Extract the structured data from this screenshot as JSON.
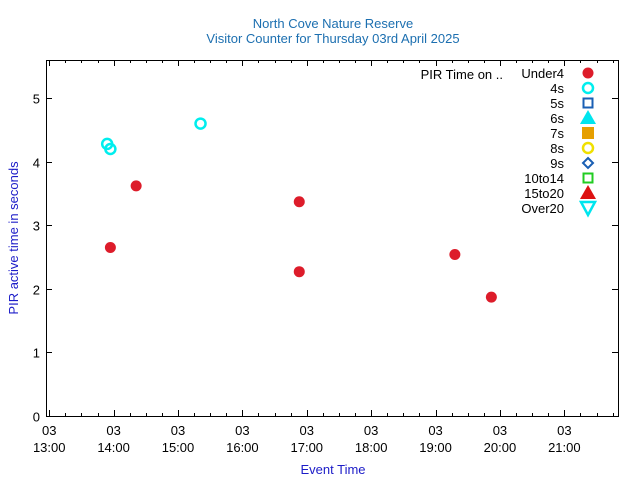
{
  "chart_data": {
    "type": "scatter",
    "title": "North Cove Nature Reserve",
    "subtitle": "Visitor Counter for Thursday 03rd April 2025",
    "xlabel": "Event Time",
    "ylabel": "PIR active time in seconds",
    "legend_title": "PIR Time on ..",
    "legend_position": "top-right",
    "xlim": [
      "12:57",
      "21:50"
    ],
    "ylim": [
      0,
      5.6
    ],
    "x_ticks": [
      {
        "day": "03",
        "time": "13:00"
      },
      {
        "day": "03",
        "time": "14:00"
      },
      {
        "day": "03",
        "time": "15:00"
      },
      {
        "day": "03",
        "time": "16:00"
      },
      {
        "day": "03",
        "time": "17:00"
      },
      {
        "day": "03",
        "time": "18:00"
      },
      {
        "day": "03",
        "time": "19:00"
      },
      {
        "day": "03",
        "time": "20:00"
      },
      {
        "day": "03",
        "time": "21:00"
      }
    ],
    "y_ticks": [
      0,
      1,
      2,
      3,
      4,
      5
    ],
    "grid": false,
    "series": [
      {
        "name": "Under4",
        "marker": "circle-filled",
        "color": "#dd1c2a",
        "points": [
          {
            "x": "13:57",
            "y": 2.65
          },
          {
            "x": "14:21",
            "y": 3.62
          },
          {
            "x": "16:53",
            "y": 2.27
          },
          {
            "x": "16:53",
            "y": 3.37
          },
          {
            "x": "19:18",
            "y": 2.54
          },
          {
            "x": "19:52",
            "y": 1.87
          }
        ]
      },
      {
        "name": "4s",
        "marker": "circle-open",
        "color": "#00eeee",
        "points": [
          {
            "x": "13:54",
            "y": 4.28
          },
          {
            "x": "13:57",
            "y": 4.2
          },
          {
            "x": "15:21",
            "y": 4.6
          }
        ]
      },
      {
        "name": "5s",
        "marker": "square-open",
        "color": "#1a5fb4",
        "points": []
      },
      {
        "name": "6s",
        "marker": "triangle-up-filled",
        "color": "#00e5ee",
        "points": []
      },
      {
        "name": "7s",
        "marker": "square-filled",
        "color": "#e69f00",
        "points": []
      },
      {
        "name": "8s",
        "marker": "circle-open",
        "color": "#f0e000",
        "points": []
      },
      {
        "name": "9s",
        "marker": "diamond-open",
        "color": "#1a5fb4",
        "points": []
      },
      {
        "name": "10to14",
        "marker": "square-open",
        "color": "#22cc22",
        "points": []
      },
      {
        "name": "15to20",
        "marker": "triangle-up-filled",
        "color": "#dd1111",
        "points": []
      },
      {
        "name": "Over20",
        "marker": "triangle-down-open",
        "color": "#00e5ee",
        "points": []
      }
    ]
  }
}
